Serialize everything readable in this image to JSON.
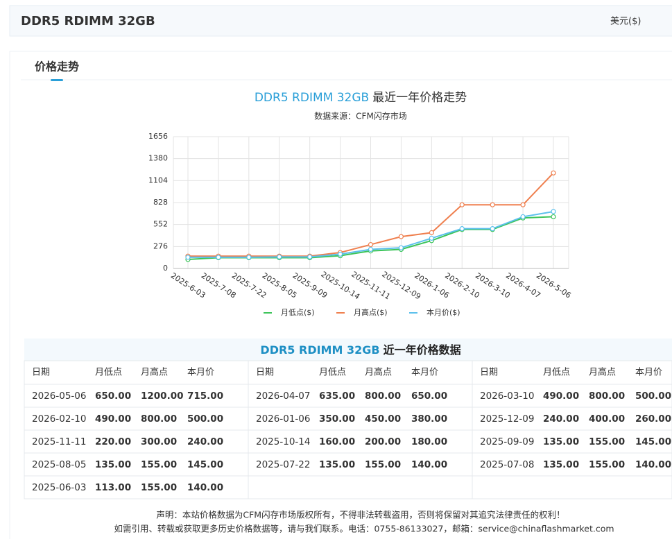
{
  "header": {
    "title": "DDR5 RDIMM 32GB",
    "currency": "美元($)"
  },
  "tab": "价格走势",
  "chart_data": {
    "type": "line",
    "title": "DDR5 RDIMM 32GB",
    "title_suffix": "最近一年价格走势",
    "subtitle": "数据来源：CFM闪存市场",
    "categories": [
      "2025-6-03",
      "2025-7-08",
      "2025-7-22",
      "2025-8-05",
      "2025-9-09",
      "2025-10-14",
      "2025-11-11",
      "2025-12-09",
      "2026-1-06",
      "2026-2-10",
      "2026-3-10",
      "2026-4-07",
      "2026-5-06"
    ],
    "series": [
      {
        "name": "月低点($)",
        "color": "#3cc45a",
        "values": [
          113,
          135,
          135,
          135,
          135,
          160,
          220,
          240,
          350,
          490,
          490,
          635,
          650
        ]
      },
      {
        "name": "月高点($)",
        "color": "#ef7f4e",
        "values": [
          155,
          155,
          155,
          155,
          155,
          200,
          300,
          400,
          450,
          800,
          800,
          800,
          1200
        ]
      },
      {
        "name": "本月价($)",
        "color": "#5cc0ec",
        "values": [
          140,
          140,
          140,
          145,
          145,
          180,
          240,
          260,
          380,
          500,
          500,
          650,
          715
        ]
      }
    ],
    "ylim": [
      0,
      1656
    ],
    "yticks": [
      0,
      276,
      552,
      828,
      1104,
      1380,
      1656
    ],
    "grid": true,
    "legend": "bottom"
  },
  "table": {
    "title": "DDR5 RDIMM 32GB",
    "title_suffix": "近一年价格数据",
    "headers": [
      "日期",
      "月低点",
      "月高点",
      "本月价"
    ],
    "rows": [
      [
        "2026-05-06",
        "650.00",
        "1200.00",
        "715.00"
      ],
      [
        "2026-04-07",
        "635.00",
        "800.00",
        "650.00"
      ],
      [
        "2026-03-10",
        "490.00",
        "800.00",
        "500.00"
      ],
      [
        "2026-02-10",
        "490.00",
        "800.00",
        "500.00"
      ],
      [
        "2026-01-06",
        "350.00",
        "450.00",
        "380.00"
      ],
      [
        "2025-12-09",
        "240.00",
        "400.00",
        "260.00"
      ],
      [
        "2025-11-11",
        "220.00",
        "300.00",
        "240.00"
      ],
      [
        "2025-10-14",
        "160.00",
        "200.00",
        "180.00"
      ],
      [
        "2025-09-09",
        "135.00",
        "155.00",
        "145.00"
      ],
      [
        "2025-08-05",
        "135.00",
        "155.00",
        "145.00"
      ],
      [
        "2025-07-22",
        "135.00",
        "155.00",
        "140.00"
      ],
      [
        "2025-07-08",
        "135.00",
        "155.00",
        "140.00"
      ],
      [
        "2025-06-03",
        "113.00",
        "155.00",
        "140.00"
      ]
    ]
  },
  "footer": {
    "lines": [
      "声明：本站价格数据为CFM闪存市场版权所有，不得非法转载盗用，否则将保留对其追究法律责任的权利！",
      "如需引用、转载或获取更多历史价格数据等，请与我们联系。电话：0755-86133027，邮箱：service@chinaflashmarket.com"
    ]
  }
}
